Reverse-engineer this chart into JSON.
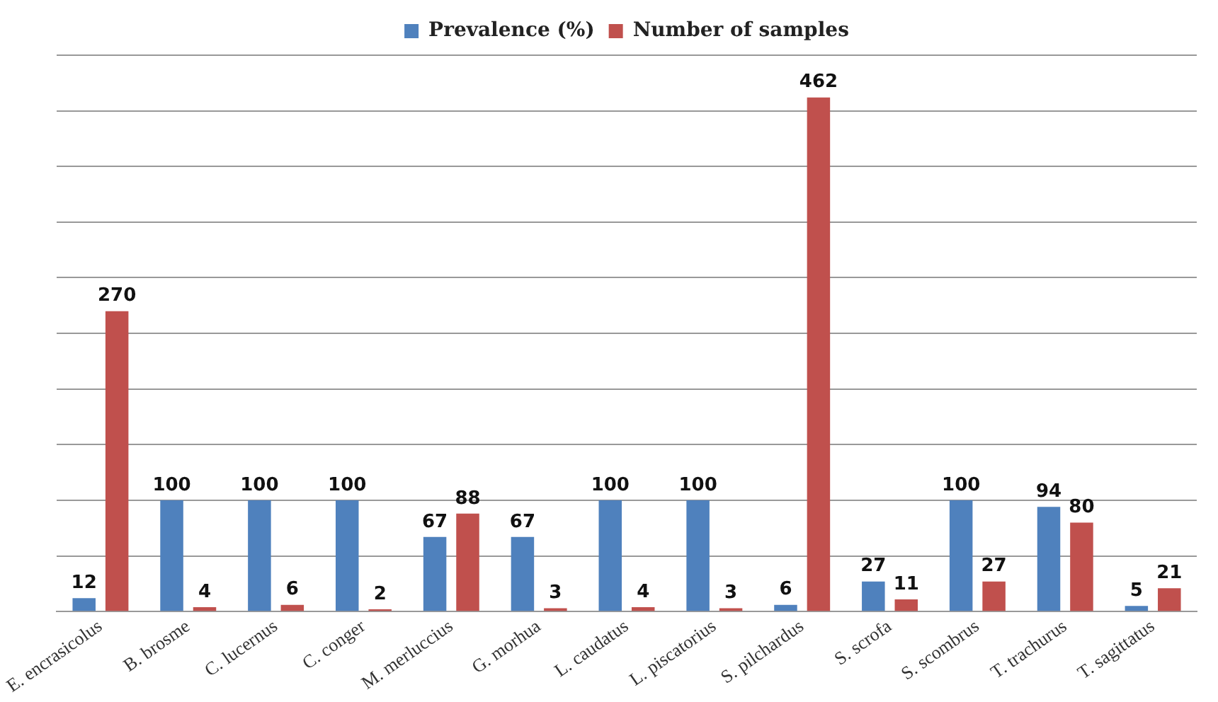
{
  "chart_data": {
    "type": "bar",
    "categories": [
      "E. encrasicolus",
      "B. brosme",
      "C. lucernus",
      "C. conger",
      "M. merluccius",
      "G. morhua",
      "L. caudatus",
      "L. piscatorius",
      "S. pilchardus",
      "S. scrofa",
      "S. scombrus",
      "T. trachurus",
      "T. sagittatus"
    ],
    "series": [
      {
        "name": "Prevalence (%)",
        "color": "#4f81bd",
        "values": [
          12,
          100,
          100,
          100,
          67,
          67,
          100,
          100,
          6,
          27,
          100,
          94,
          5
        ]
      },
      {
        "name": "Number of samples",
        "color": "#c0504d",
        "values": [
          270,
          4,
          6,
          2,
          88,
          3,
          4,
          3,
          462,
          11,
          27,
          80,
          21
        ]
      }
    ],
    "ylim": [
      0,
      500
    ],
    "yticks": [
      {
        "value": 0,
        "label": null
      },
      {
        "value": 50,
        "label": null
      },
      {
        "value": 100,
        "label": null
      },
      {
        "value": 150,
        "label": null
      },
      {
        "value": 200,
        "label": null
      },
      {
        "value": 250,
        "label": null
      },
      {
        "value": 300,
        "label": null
      },
      {
        "value": 350,
        "label": null
      },
      {
        "value": 400,
        "label": null
      },
      {
        "value": 450,
        "label": null
      },
      {
        "value": 500,
        "label": null
      }
    ],
    "tick_labels": "x",
    "grid": "y",
    "legend": "top",
    "data_labels": true
  }
}
